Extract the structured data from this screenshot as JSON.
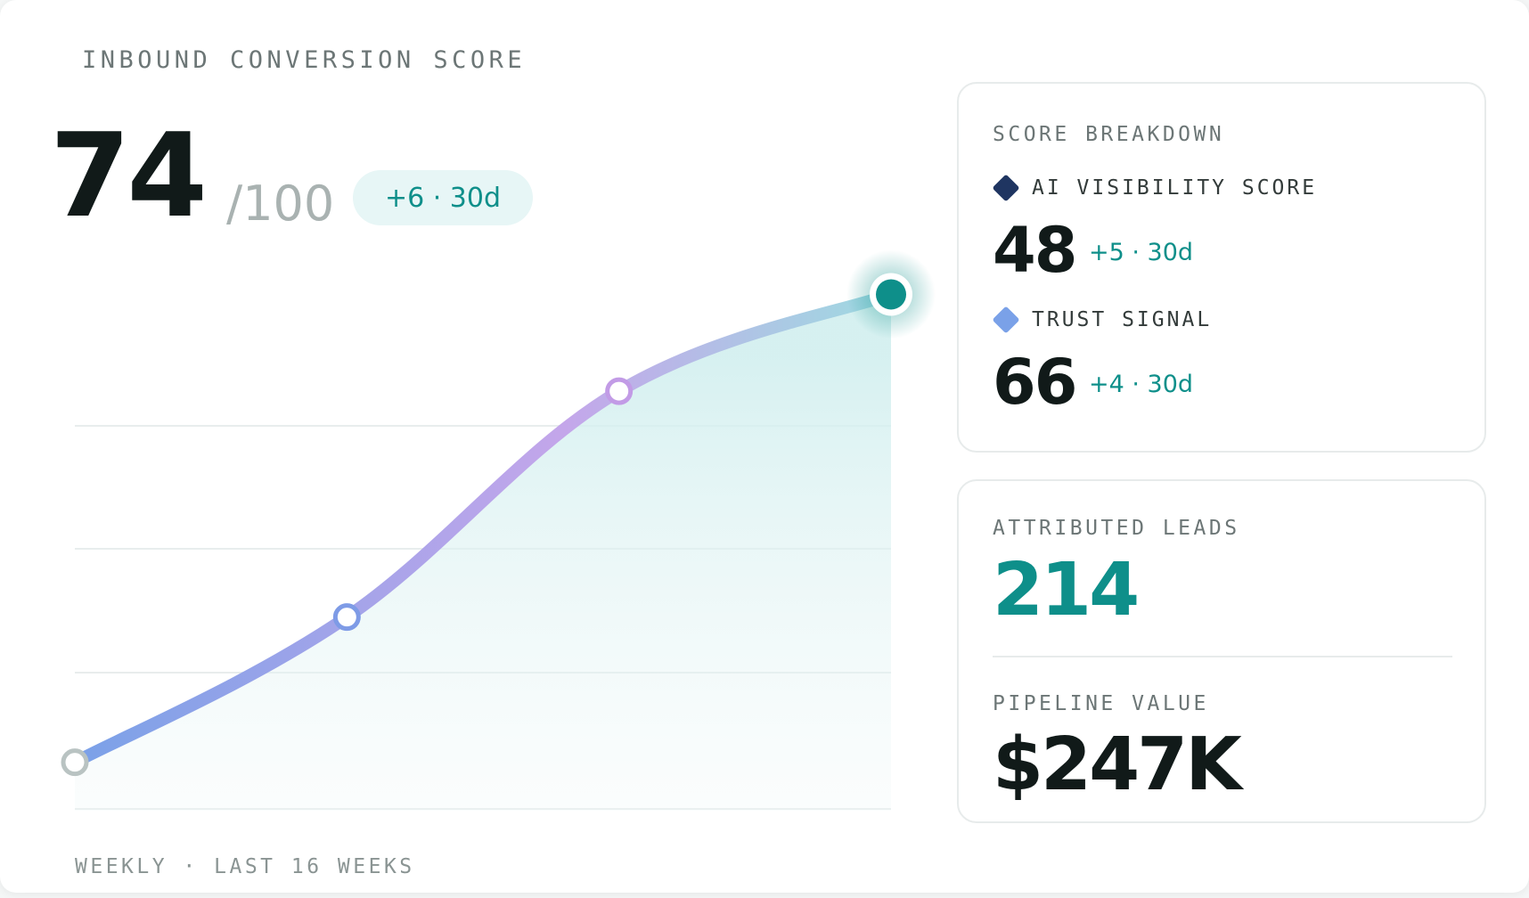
{
  "main": {
    "label": "INBOUND CONVERSION SCORE",
    "value": "74",
    "max": "/100",
    "delta": "+6 · 30d",
    "footer": "WEEKLY · LAST 16 WEEKS"
  },
  "chart_data": {
    "type": "line",
    "title": "",
    "xlabel": "",
    "ylabel": "",
    "x": [
      0,
      5,
      10,
      15
    ],
    "series": [
      {
        "values": [
          45,
          54,
          68,
          74
        ]
      }
    ],
    "ylim": [
      42,
      78
    ],
    "grid": true,
    "highlighted_point_index": 3
  },
  "breakdown": {
    "title": "SCORE BREAKDOWN",
    "items": [
      {
        "label": "AI VISIBILITY SCORE",
        "value": "48",
        "delta": "+5 · 30d",
        "color": "#1f3561"
      },
      {
        "label": "TRUST SIGNAL",
        "value": "66",
        "delta": "+4 · 30d",
        "color": "#7aa1e8"
      }
    ]
  },
  "leads": {
    "label": "ATTRIBUTED LEADS",
    "value": "214",
    "value_color": "#0e8f8a"
  },
  "pipeline": {
    "label": "PIPELINE VALUE",
    "value": "$247K"
  },
  "colors": {
    "accent": "#0e8f8a",
    "line_start": "#7aa1e8",
    "line_mid": "#c4a6ea",
    "line_end": "#9edbe1"
  }
}
